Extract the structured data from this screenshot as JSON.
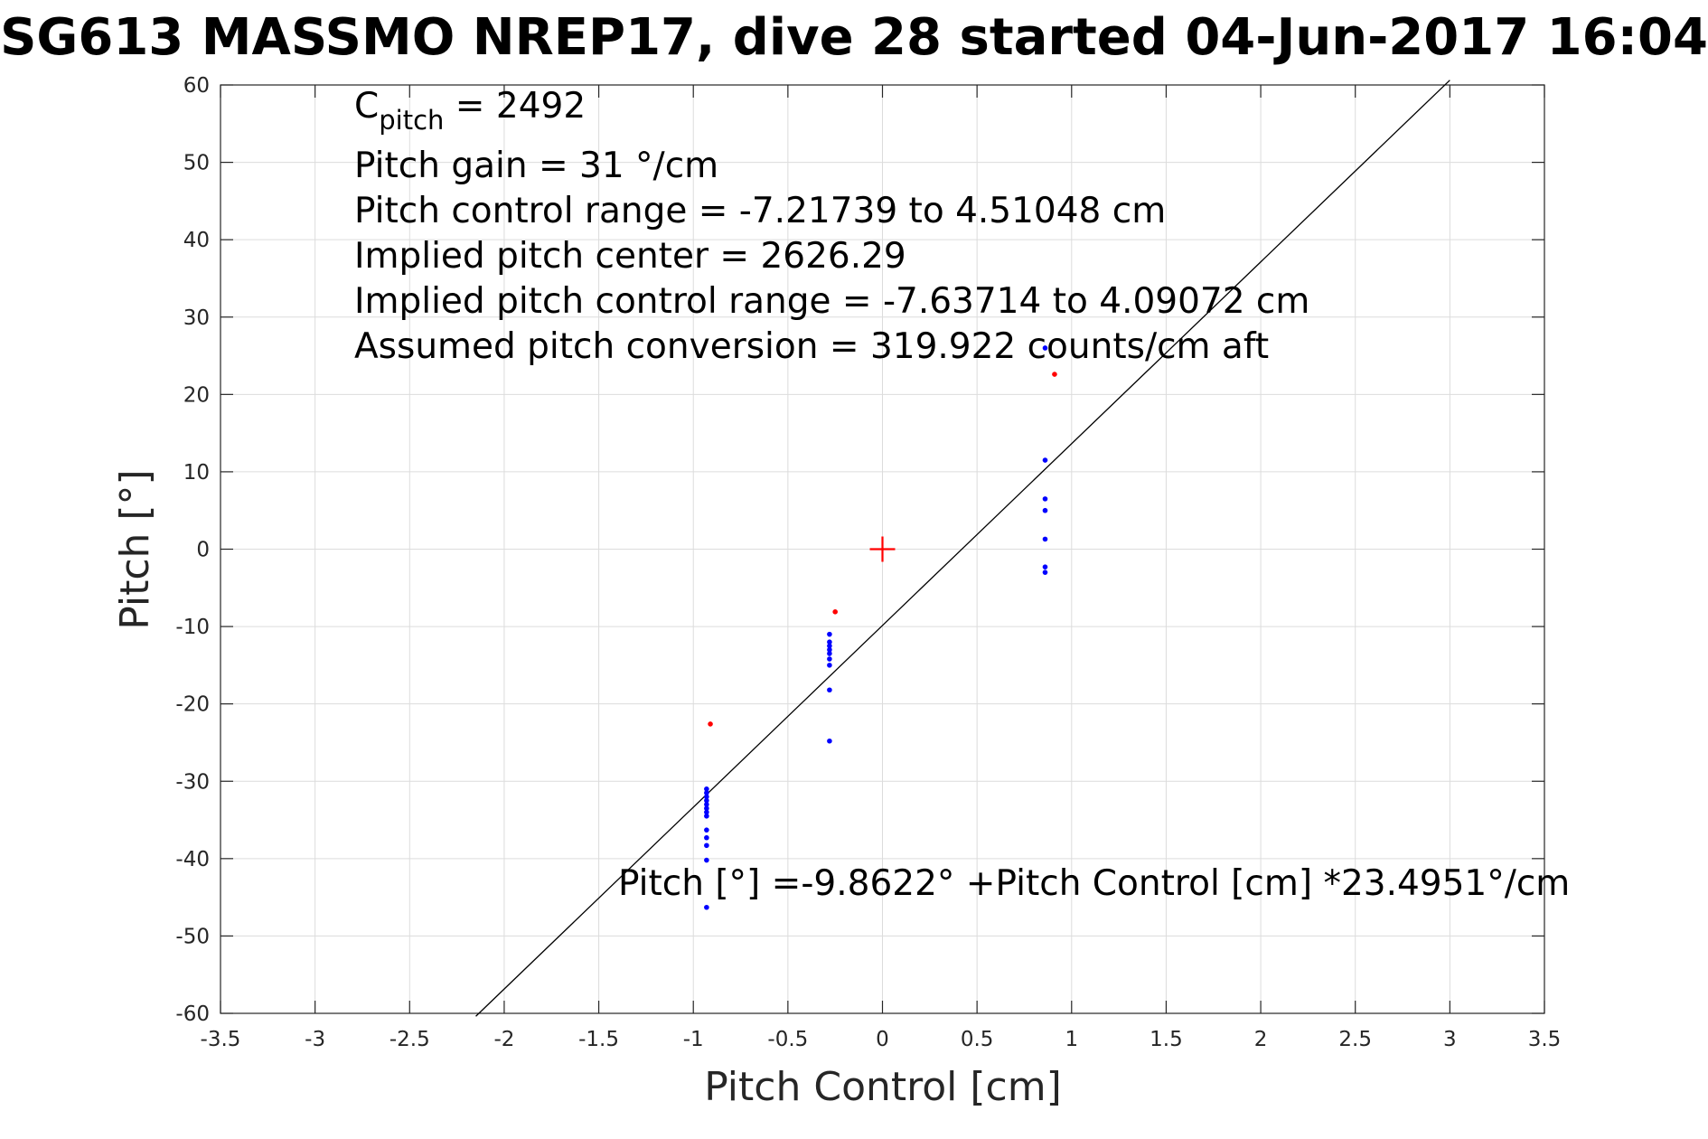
{
  "chart_data": {
    "type": "scatter",
    "title": "SG613 MASSMO NREP17, dive 28 started 04-Jun-2017 16:04",
    "xlabel": "Pitch Control [cm]",
    "ylabel": "Pitch [°]",
    "xlim": [
      -3.5,
      3.5
    ],
    "ylim": [
      -60,
      60
    ],
    "xticks": [
      -3.5,
      -3,
      -2.5,
      -2,
      -1.5,
      -1,
      -0.5,
      0,
      0.5,
      1,
      1.5,
      2,
      2.5,
      3,
      3.5
    ],
    "yticks": [
      -60,
      -50,
      -40,
      -30,
      -20,
      -10,
      0,
      10,
      20,
      30,
      40,
      50,
      60
    ],
    "xtick_labels": [
      "-3.5",
      "-3",
      "-2.5",
      "-2",
      "-1.5",
      "-1",
      "-0.5",
      "0",
      "0.5",
      "1",
      "1.5",
      "2",
      "2.5",
      "3",
      "3.5"
    ],
    "ytick_labels": [
      "-60",
      "-50",
      "-40",
      "-30",
      "-20",
      "-10",
      "0",
      "10",
      "20",
      "30",
      "40",
      "50",
      "60"
    ],
    "grid": true,
    "colors": {
      "blue": "#0000ff",
      "red": "#ff0000",
      "line": "#000000",
      "grid": "#dcdcdc",
      "axis": "#262626"
    },
    "series": [
      {
        "color": "#0000ff",
        "points": [
          [
            0.86,
            26.0
          ],
          [
            0.86,
            11.5
          ],
          [
            0.86,
            6.5
          ],
          [
            0.86,
            5.0
          ],
          [
            0.86,
            1.3
          ],
          [
            0.86,
            -2.3
          ],
          [
            0.86,
            -3.0
          ],
          [
            -0.28,
            -11.0
          ],
          [
            -0.28,
            -12.0
          ],
          [
            -0.28,
            -12.5
          ],
          [
            -0.28,
            -13.0
          ],
          [
            -0.28,
            -13.5
          ],
          [
            -0.28,
            -14.2
          ],
          [
            -0.28,
            -15.0
          ],
          [
            -0.28,
            -18.2
          ],
          [
            -0.28,
            -24.8
          ],
          [
            -0.93,
            -31.0
          ],
          [
            -0.93,
            -31.5
          ],
          [
            -0.93,
            -32.0
          ],
          [
            -0.93,
            -32.5
          ],
          [
            -0.93,
            -33.0
          ],
          [
            -0.93,
            -33.5
          ],
          [
            -0.93,
            -34.0
          ],
          [
            -0.93,
            -34.5
          ],
          [
            -0.93,
            -36.3
          ],
          [
            -0.93,
            -37.3
          ],
          [
            -0.93,
            -38.3
          ],
          [
            -0.93,
            -40.2
          ],
          [
            -0.93,
            -46.3
          ]
        ]
      },
      {
        "color": "#ff0000",
        "points": [
          [
            0.91,
            22.6
          ],
          [
            -0.25,
            -8.1
          ],
          [
            -0.91,
            -22.6
          ]
        ]
      }
    ],
    "center_marker": {
      "x": 0,
      "y": 0,
      "color": "#ff0000"
    },
    "fit_line": {
      "intercept": -9.8622,
      "slope": 23.4951,
      "x_range": [
        -2.15,
        3.0
      ]
    },
    "annotations": {
      "cpitch_base": "C",
      "cpitch_sub": "pitch",
      "cpitch_value": " = 2492",
      "pitch_gain": "Pitch gain = 31 °/cm",
      "control_range": "Pitch control range = -7.21739 to 4.51048 cm",
      "implied_center": "Implied pitch center = 2626.29",
      "implied_range": "Implied pitch control range = -7.63714 to 4.09072 cm",
      "conversion": "Assumed pitch conversion = 319.922 counts/cm aft",
      "fit_equation": "Pitch [°] =-9.8622° +Pitch Control [cm] *23.4951°/cm"
    }
  }
}
